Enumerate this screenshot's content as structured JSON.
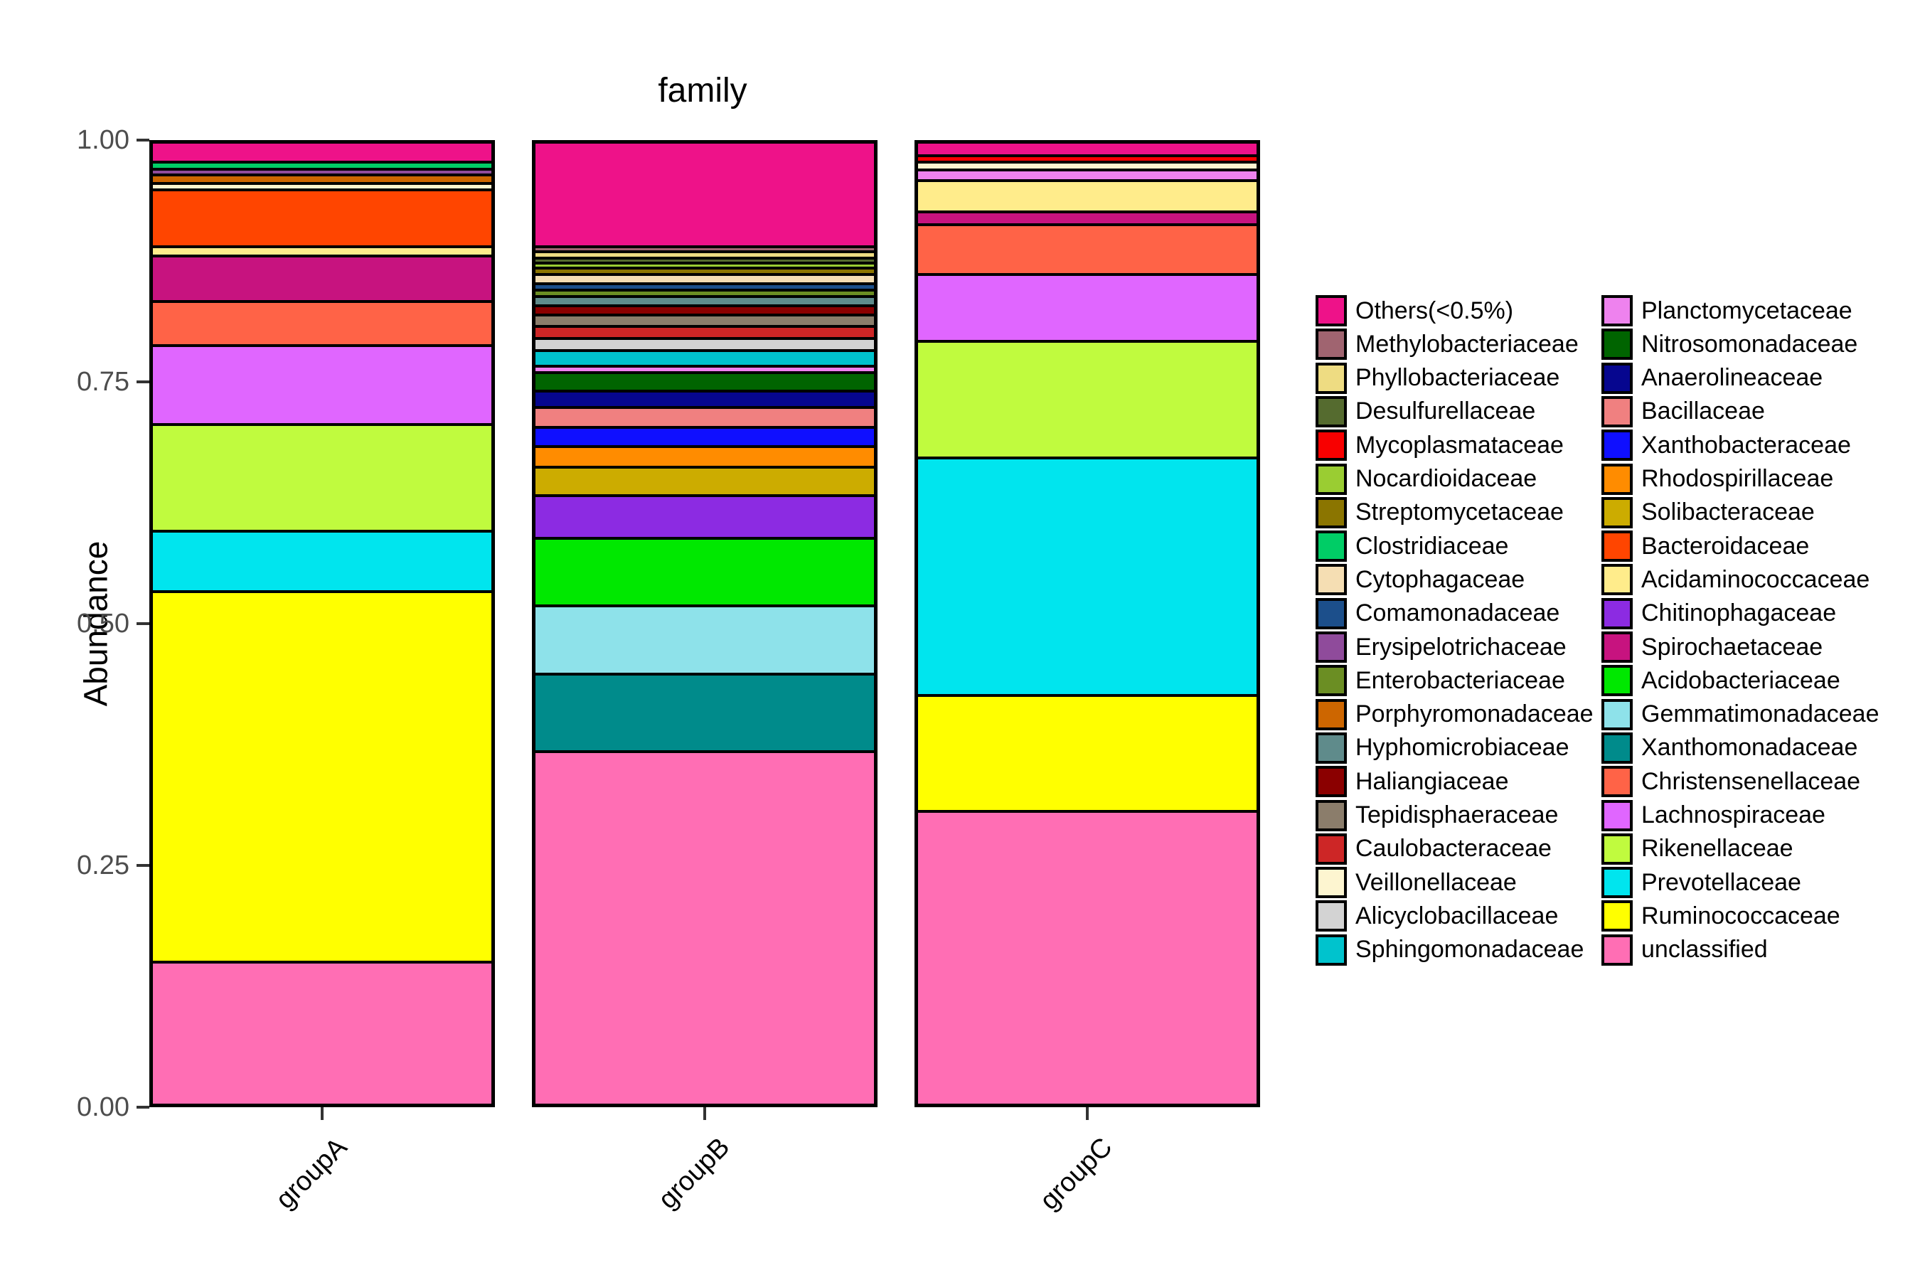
{
  "title": "family",
  "colors": {
    "background": "#FFFFFF",
    "bar_border": "#000000",
    "axis_tick": "#333333",
    "tick_label_text": "#4D4D4D",
    "label_text": "#000000"
  },
  "chart_data": {
    "type": "bar",
    "subtype": "stacked-proportional",
    "title": "family",
    "xlabel": "",
    "ylabel": "Abundance",
    "ylim": [
      0,
      1
    ],
    "yticks": [
      1.0,
      0.75,
      0.5,
      0.25,
      0.0
    ],
    "ytick_labels": [
      "1.00",
      "0.75",
      "0.50",
      "0.25",
      "0.00"
    ],
    "grid": false,
    "legend_position": "right",
    "categories": [
      "groupA",
      "groupB",
      "groupC"
    ],
    "legend": {
      "columns": [
        [
          {
            "label": "Others(<0.5%)",
            "color": "#EE1289"
          },
          {
            "label": "Methylobacteriaceae",
            "color": "#A06470"
          },
          {
            "label": "Phyllobacteriaceae",
            "color": "#EEDC82"
          },
          {
            "label": "Desulfurellaceae",
            "color": "#556B2F"
          },
          {
            "label": "Mycoplasmataceae",
            "color": "#F80000"
          },
          {
            "label": "Nocardioidaceae",
            "color": "#9ACD32"
          },
          {
            "label": "Streptomycetaceae",
            "color": "#8B7500"
          },
          {
            "label": "Clostridiaceae",
            "color": "#00CD66"
          },
          {
            "label": "Cytophagaceae",
            "color": "#F5DEB3"
          },
          {
            "label": "Comamonadaceae",
            "color": "#1C4F8B"
          },
          {
            "label": "Erysipelotrichaceae",
            "color": "#8F4B9B"
          },
          {
            "label": "Enterobacteriaceae",
            "color": "#6B8E23"
          },
          {
            "label": "Porphyromonadaceae",
            "color": "#CD6600"
          },
          {
            "label": "Hyphomicrobiaceae",
            "color": "#5F8B8B"
          },
          {
            "label": "Haliangiaceae",
            "color": "#8B0000"
          },
          {
            "label": "Tepidisphaeraceae",
            "color": "#8B7D6B"
          },
          {
            "label": "Caulobacteraceae",
            "color": "#CD2626"
          },
          {
            "label": "Veillonellaceae",
            "color": "#FDF5D0"
          },
          {
            "label": "Alicyclobacillaceae",
            "color": "#D3D3D3"
          },
          {
            "label": "Sphingomonadaceae",
            "color": "#00C3CD"
          }
        ],
        [
          {
            "label": "Planctomycetaceae",
            "color": "#EE82EE"
          },
          {
            "label": "Nitrosomonadaceae",
            "color": "#006400"
          },
          {
            "label": "Anaerolineaceae",
            "color": "#06068F"
          },
          {
            "label": "Bacillaceae",
            "color": "#F08080"
          },
          {
            "label": "Xanthobacteraceae",
            "color": "#0F0FFF"
          },
          {
            "label": "Rhodospirillaceae",
            "color": "#FF8C00"
          },
          {
            "label": "Solibacteraceae",
            "color": "#CCAC00"
          },
          {
            "label": "Bacteroidaceae",
            "color": "#FF4500"
          },
          {
            "label": "Acidaminococcaceae",
            "color": "#FFEC8B"
          },
          {
            "label": "Chitinophagaceae",
            "color": "#8C2BE2"
          },
          {
            "label": "Spirochaetaceae",
            "color": "#C7137F"
          },
          {
            "label": "Acidobacteriaceae",
            "color": "#00E800"
          },
          {
            "label": "Gemmatimonadaceae",
            "color": "#8EE2EA"
          },
          {
            "label": "Xanthomonadaceae",
            "color": "#008B8B"
          },
          {
            "label": "Christensenellaceae",
            "color": "#FF6347"
          },
          {
            "label": "Lachnospiraceae",
            "color": "#E066FF"
          },
          {
            "label": "Rikenellaceae",
            "color": "#C0FB3E"
          },
          {
            "label": "Prevotellaceae",
            "color": "#00E5EE"
          },
          {
            "label": "Ruminococcaceae",
            "color": "#FFFF00"
          },
          {
            "label": "unclassified",
            "color": "#FF6EB4"
          }
        ]
      ]
    },
    "groups": [
      {
        "label": "groupA",
        "segments_bottom_to_top": [
          {
            "family": "unclassified",
            "value": 0.149
          },
          {
            "family": "Ruminococcaceae",
            "value": 0.387
          },
          {
            "family": "Prevotellaceae",
            "value": 0.063
          },
          {
            "family": "Rikenellaceae",
            "value": 0.111
          },
          {
            "family": "Lachnospiraceae",
            "value": 0.083
          },
          {
            "family": "Christensenellaceae",
            "value": 0.046
          },
          {
            "family": "Spirochaetaceae",
            "value": 0.047
          },
          {
            "family": "Acidaminococcaceae",
            "value": 0.01
          },
          {
            "family": "Bacteroidaceae",
            "value": 0.059
          },
          {
            "family": "Veillonellaceae",
            "value": 0.007
          },
          {
            "family": "Porphyromonadaceae",
            "value": 0.009
          },
          {
            "family": "Erysipelotrichaceae",
            "value": 0.006
          },
          {
            "family": "Clostridiaceae",
            "value": 0.007
          },
          {
            "family": "Others(<0.5%)",
            "value": 0.018
          }
        ]
      },
      {
        "label": "groupB",
        "segments_bottom_to_top": [
          {
            "family": "unclassified",
            "value": 0.368
          },
          {
            "family": "Xanthomonadaceae",
            "value": 0.08
          },
          {
            "family": "Gemmatimonadaceae",
            "value": 0.071
          },
          {
            "family": "Acidobacteriaceae",
            "value": 0.071
          },
          {
            "family": "Chitinophagaceae",
            "value": 0.044
          },
          {
            "family": "Solibacteraceae",
            "value": 0.03
          },
          {
            "family": "Rhodospirillaceae",
            "value": 0.021
          },
          {
            "family": "Xanthobacteraceae",
            "value": 0.02
          },
          {
            "family": "Bacillaceae",
            "value": 0.021
          },
          {
            "family": "Anaerolineaceae",
            "value": 0.017
          },
          {
            "family": "Nitrosomonadaceae",
            "value": 0.019
          },
          {
            "family": "Planctomycetaceae",
            "value": 0.007
          },
          {
            "family": "Sphingomonadaceae",
            "value": 0.016
          },
          {
            "family": "Alicyclobacillaceae",
            "value": 0.013
          },
          {
            "family": "Caulobacteraceae",
            "value": 0.012
          },
          {
            "family": "Tepidisphaeraceae",
            "value": 0.012
          },
          {
            "family": "Haliangiaceae",
            "value": 0.01
          },
          {
            "family": "Hyphomicrobiaceae",
            "value": 0.009
          },
          {
            "family": "Enterobacteriaceae",
            "value": 0.007
          },
          {
            "family": "Comamonadaceae",
            "value": 0.007
          },
          {
            "family": "Cytophagaceae",
            "value": 0.009
          },
          {
            "family": "Streptomycetaceae",
            "value": 0.007
          },
          {
            "family": "Nocardioidaceae",
            "value": 0.005
          },
          {
            "family": "Desulfurellaceae",
            "value": 0.005
          },
          {
            "family": "Phyllobacteriaceae",
            "value": 0.007
          },
          {
            "family": "Methylobacteriaceae",
            "value": 0.005
          },
          {
            "family": "Others(<0.5%)",
            "value": 0.106
          }
        ]
      },
      {
        "label": "groupC",
        "segments_bottom_to_top": [
          {
            "family": "unclassified",
            "value": 0.306
          },
          {
            "family": "Ruminococcaceae",
            "value": 0.121
          },
          {
            "family": "Prevotellaceae",
            "value": 0.248
          },
          {
            "family": "Rikenellaceae",
            "value": 0.121
          },
          {
            "family": "Lachnospiraceae",
            "value": 0.07
          },
          {
            "family": "Christensenellaceae",
            "value": 0.052
          },
          {
            "family": "Spirochaetaceae",
            "value": 0.013
          },
          {
            "family": "Acidaminococcaceae",
            "value": 0.033
          },
          {
            "family": "Planctomycetaceae",
            "value": 0.011
          },
          {
            "family": "Veillonellaceae",
            "value": 0.008
          },
          {
            "family": "Mycoplasmataceae",
            "value": 0.007
          },
          {
            "family": "Others(<0.5%)",
            "value": 0.011
          }
        ]
      }
    ]
  }
}
